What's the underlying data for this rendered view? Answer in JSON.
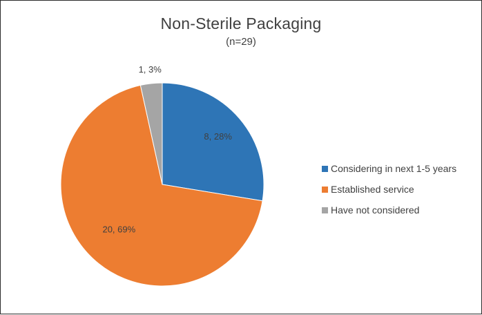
{
  "chart_data": {
    "type": "pie",
    "title": "Non-Sterile Packaging",
    "subtitle": "(n=29)",
    "categories": [
      "Considering in next 1-5 years",
      "Established service",
      "Have not considered"
    ],
    "values": [
      8,
      20,
      1
    ],
    "percents": [
      28,
      69,
      3
    ],
    "data_labels": [
      "8, 28%",
      "20, 69%",
      "1, 3%"
    ],
    "colors": [
      "#2e75b6",
      "#ed7d31",
      "#a5a5a5"
    ],
    "start_angle_deg": 0,
    "direction": "clockwise",
    "legend": {
      "position": "right",
      "entries": [
        "Considering in next 1-5 years",
        "Established service",
        "Have not considered"
      ]
    }
  }
}
